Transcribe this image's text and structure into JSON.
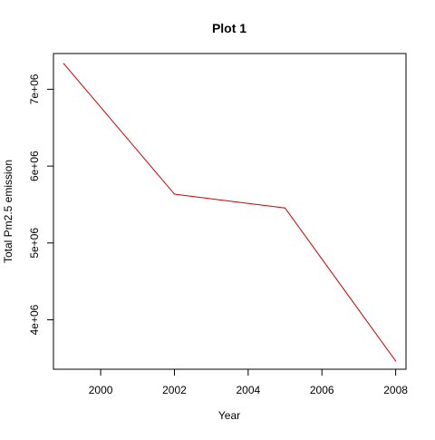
{
  "chart_data": {
    "type": "line",
    "title": "Plot 1",
    "xlabel": "Year",
    "ylabel": "Total Pm2.5 emission",
    "xlim": [
      1998.72,
      2008.28
    ],
    "ylim": [
      3357000,
      7465000
    ],
    "x_ticks": [
      2000,
      2002,
      2004,
      2006,
      2008
    ],
    "x_tick_labels": [
      "2000",
      "2002",
      "2004",
      "2006",
      "2008"
    ],
    "y_ticks": [
      4000000,
      5000000,
      6000000,
      7000000
    ],
    "y_tick_labels": [
      "4e+06",
      "5e+06",
      "6e+06",
      "7e+06"
    ],
    "grid": false,
    "series": [
      {
        "color": "#cc0000",
        "points": [
          {
            "x": 1999,
            "y": 7332967
          },
          {
            "x": 2002,
            "y": 5635780
          },
          {
            "x": 2005,
            "y": 5454703
          },
          {
            "x": 2008,
            "y": 3464206
          }
        ]
      }
    ]
  }
}
